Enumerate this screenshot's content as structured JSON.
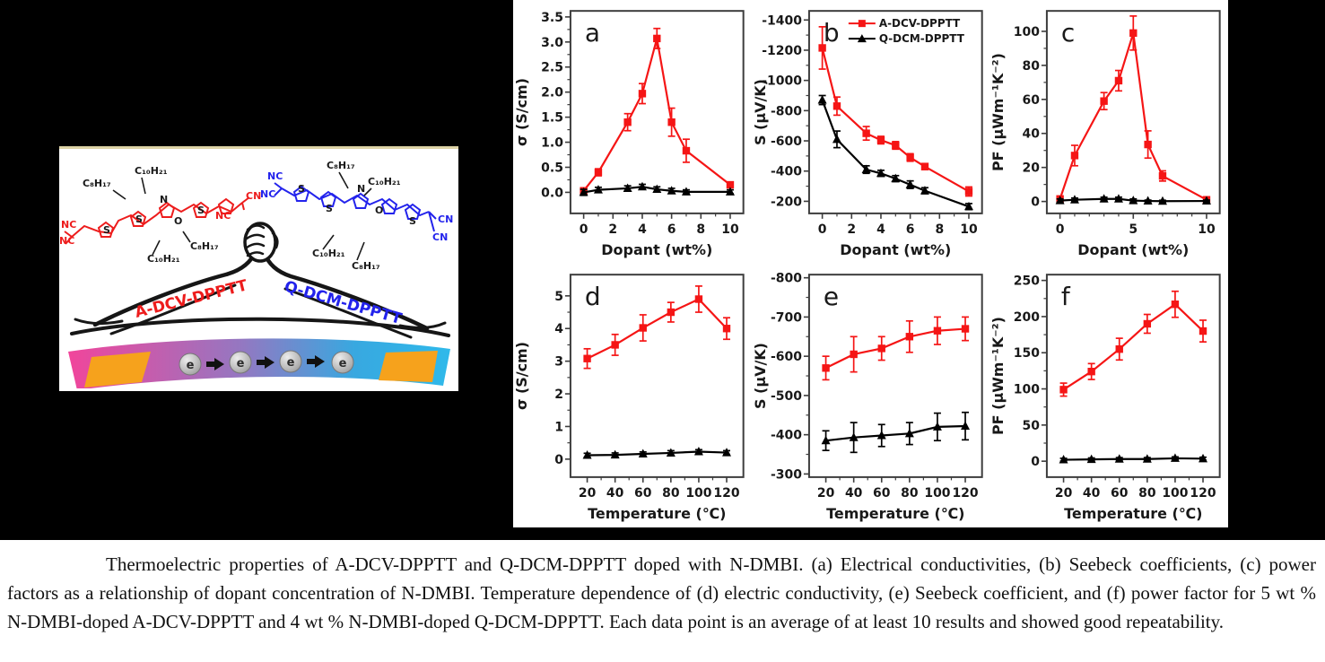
{
  "caption": {
    "text": "Thermoelectric properties of A-DCV-DPPTT and Q-DCM-DPPTT doped with N-DMBI. (a) Electrical conductivities, (b) Seebeck coefficients, (c) power factors as a relationship of dopant concentration of N-DMBI. Temperature dependence of (d) electric conductivity, (e) Seebeck coefficient, and (f) power factor for 5 wt % N-DMBI-doped A-DCV-DPPTT and 4 wt % N-DMBI-doped Q-DCM-DPPTT. Each data point is an average of at least 10 results and showed good repeatability."
  },
  "colors": {
    "series_red": "#f51515",
    "series_black": "#000000",
    "molecule_red": "#ed1c1c",
    "molecule_blue": "#2323ec",
    "electrode_orange": "#f6a21c",
    "film_pink": "#f1459b",
    "film_blue": "#2fb9ea",
    "figure_background": "#000000"
  },
  "illustration": {
    "left_molecule": {
      "name": "A-DCV-DPPTT",
      "alkyl": [
        "C₈H₁₇",
        "C₁₀H₂₁",
        "C₁₀H₂₁",
        "C₈H₁₇"
      ],
      "nitriles": [
        "NC",
        "NC",
        "NC",
        "CN"
      ],
      "atoms": [
        "S",
        "S",
        "N",
        "O",
        "S"
      ]
    },
    "right_molecule": {
      "name": "Q-DCM-DPPTT",
      "alkyl": [
        "C₈H₁₇",
        "C₁₀H₂₁",
        "C₁₀H₂₁",
        "C₈H₁₇"
      ],
      "nitriles": [
        "NC",
        "NC",
        "CN",
        "CN"
      ],
      "atoms": [
        "S",
        "S",
        "N",
        "O",
        "S"
      ]
    },
    "electron_symbol": "e"
  },
  "chart_data": [
    {
      "id": "a",
      "letter": "a",
      "type": "line",
      "xlabel": "Dopant (wt%)",
      "ylabel": "σ (S/cm)",
      "xlim": [
        -0.9,
        10.9
      ],
      "ylim": [
        -0.42,
        3.62
      ],
      "xticks": [
        0,
        2,
        4,
        6,
        8,
        10
      ],
      "xtick_labels": [
        "0",
        "2",
        "4",
        "6",
        "8",
        "10"
      ],
      "xminor": [
        1,
        3,
        5,
        7,
        9
      ],
      "yticks": [
        0,
        0.5,
        1,
        1.5,
        2,
        2.5,
        3,
        3.5
      ],
      "ytick_labels": [
        "0.0",
        "0.5",
        "1.0",
        "1.5",
        "2.0",
        "2.5",
        "3.0",
        "3.5"
      ],
      "x": [
        0,
        1,
        3,
        4,
        5,
        6,
        7,
        10
      ],
      "legend": false,
      "series": [
        {
          "name": "A-DCV-DPPTT",
          "color": "#f51515",
          "marker": "square",
          "y": [
            0.03,
            0.4,
            1.4,
            1.97,
            3.07,
            1.4,
            0.83,
            0.15
          ],
          "yerr": [
            0.06,
            0.07,
            0.17,
            0.2,
            0.2,
            0.28,
            0.23,
            0.05
          ]
        },
        {
          "name": "Q-DCM-DPPTT",
          "color": "#000000",
          "marker": "triangle",
          "y": [
            0.0,
            0.05,
            0.08,
            0.11,
            0.06,
            0.03,
            0.01,
            0.01
          ],
          "yerr": [
            0.06,
            0.05,
            0.05,
            0.05,
            0.05,
            0.05,
            0.04,
            0.04
          ]
        }
      ]
    },
    {
      "id": "b",
      "letter": "b",
      "type": "line",
      "xlabel": "Dopant (wt%)",
      "ylabel": "S (μV/K)",
      "xlim": [
        -0.9,
        10.9
      ],
      "ylim": [
        -120,
        -1460
      ],
      "xticks": [
        0,
        2,
        4,
        6,
        8,
        10
      ],
      "xtick_labels": [
        "0",
        "2",
        "4",
        "6",
        "8",
        "10"
      ],
      "xminor": [
        1,
        3,
        5,
        7,
        9
      ],
      "yticks": [
        -1400,
        -1200,
        -1000,
        -800,
        -600,
        -400,
        -200
      ],
      "ytick_labels": [
        "-1400",
        "-1200",
        "-1000",
        "-800",
        "-600",
        "-400",
        "-200"
      ],
      "x": [
        0,
        1,
        3,
        4,
        5,
        6,
        7,
        10
      ],
      "legend": true,
      "series": [
        {
          "name": "A-DCV-DPPTT",
          "color": "#f51515",
          "marker": "square",
          "y": [
            -1215,
            -830,
            -650,
            -605,
            -570,
            -490,
            -430,
            -265
          ],
          "yerr": [
            140,
            60,
            45,
            25,
            25,
            25,
            20,
            30
          ]
        },
        {
          "name": "Q-DCM-DPPTT",
          "color": "#000000",
          "marker": "triangle",
          "y": [
            -870,
            -610,
            -410,
            -385,
            -350,
            -310,
            -270,
            -165
          ],
          "yerr": [
            30,
            55,
            25,
            20,
            20,
            25,
            20,
            20
          ]
        }
      ]
    },
    {
      "id": "c",
      "letter": "c",
      "type": "line",
      "xlabel": "Dopant (wt%)",
      "ylabel": "PF (μWm⁻¹K⁻²)",
      "xlim": [
        -0.9,
        10.9
      ],
      "ylim": [
        -7,
        112
      ],
      "xticks": [
        0,
        5,
        10
      ],
      "xtick_labels": [
        "0",
        "5",
        "10"
      ],
      "xminor": [
        1,
        2,
        3,
        4,
        6,
        7,
        8,
        9
      ],
      "yticks": [
        0,
        20,
        40,
        60,
        80,
        100
      ],
      "ytick_labels": [
        "0",
        "20",
        "40",
        "60",
        "80",
        "100"
      ],
      "x": [
        0,
        1,
        3,
        4,
        5,
        6,
        7,
        10
      ],
      "legend": false,
      "series": [
        {
          "name": "A-DCV-DPPTT",
          "color": "#f51515",
          "marker": "square",
          "y": [
            1.5,
            27,
            59,
            71,
            99,
            33.5,
            15,
            1
          ],
          "yerr": [
            1.5,
            6,
            5,
            6,
            10,
            8,
            3,
            1
          ]
        },
        {
          "name": "Q-DCM-DPPTT",
          "color": "#000000",
          "marker": "triangle",
          "y": [
            0.5,
            1,
            1.5,
            1.5,
            0.5,
            0.3,
            0.2,
            0.3
          ],
          "yerr": [
            1,
            1,
            1,
            1,
            1,
            0.5,
            0.5,
            0.5
          ]
        }
      ]
    },
    {
      "id": "d",
      "letter": "d",
      "type": "line",
      "xlabel": "Temperature (℃)",
      "ylabel": "σ (S/cm)",
      "xlim": [
        8,
        132
      ],
      "ylim": [
        -0.55,
        5.65
      ],
      "xticks": [
        20,
        40,
        60,
        80,
        100,
        120
      ],
      "xtick_labels": [
        "20",
        "40",
        "60",
        "80",
        "100",
        "120"
      ],
      "xminor": [
        30,
        50,
        70,
        90,
        110
      ],
      "yticks": [
        0,
        1,
        2,
        3,
        4,
        5
      ],
      "ytick_labels": [
        "0",
        "1",
        "2",
        "3",
        "4",
        "5"
      ],
      "x": [
        20,
        40,
        60,
        80,
        100,
        120
      ],
      "legend": false,
      "series": [
        {
          "name": "A-DCV-DPPTT",
          "color": "#f51515",
          "marker": "square",
          "y": [
            3.08,
            3.5,
            4.02,
            4.5,
            4.9,
            4.0
          ],
          "yerr": [
            0.3,
            0.32,
            0.4,
            0.3,
            0.4,
            0.33
          ]
        },
        {
          "name": "Q-DCM-DPPTT",
          "color": "#000000",
          "marker": "triangle",
          "y": [
            0.12,
            0.13,
            0.16,
            0.19,
            0.23,
            0.2
          ],
          "yerr": [
            0.06,
            0.06,
            0.06,
            0.07,
            0.06,
            0.06
          ]
        }
      ]
    },
    {
      "id": "e",
      "letter": "e",
      "type": "line",
      "xlabel": "Temperature (℃)",
      "ylabel": "S (μV/K)",
      "xlim": [
        8,
        132
      ],
      "ylim": [
        -292,
        -808
      ],
      "xticks": [
        20,
        40,
        60,
        80,
        100,
        120
      ],
      "xtick_labels": [
        "20",
        "40",
        "60",
        "80",
        "100",
        "120"
      ],
      "xminor": [
        30,
        50,
        70,
        90,
        110
      ],
      "yticks": [
        -800,
        -700,
        -600,
        -500,
        -400,
        -300
      ],
      "ytick_labels": [
        "-800",
        "-700",
        "-600",
        "-500",
        "-400",
        "-300"
      ],
      "x": [
        20,
        40,
        60,
        80,
        100,
        120
      ],
      "legend": false,
      "series": [
        {
          "name": "A-DCV-DPPTT",
          "color": "#f51515",
          "marker": "square",
          "y": [
            -570,
            -605,
            -620,
            -650,
            -665,
            -670
          ],
          "yerr": [
            30,
            45,
            30,
            40,
            35,
            30
          ]
        },
        {
          "name": "Q-DCM-DPPTT",
          "color": "#000000",
          "marker": "triangle",
          "y": [
            -385,
            -393,
            -398,
            -403,
            -420,
            -422
          ],
          "yerr": [
            25,
            38,
            28,
            28,
            35,
            35
          ]
        }
      ]
    },
    {
      "id": "f",
      "letter": "f",
      "type": "line",
      "xlabel": "Temperature (℃)",
      "ylabel": "PF (μWm⁻¹K⁻²)",
      "xlim": [
        8,
        132
      ],
      "ylim": [
        -22,
        258
      ],
      "xticks": [
        20,
        40,
        60,
        80,
        100,
        120
      ],
      "xtick_labels": [
        "20",
        "40",
        "60",
        "80",
        "100",
        "120"
      ],
      "xminor": [
        30,
        50,
        70,
        90,
        110
      ],
      "yticks": [
        0,
        50,
        100,
        150,
        200,
        250
      ],
      "ytick_labels": [
        "0",
        "50",
        "100",
        "150",
        "200",
        "250"
      ],
      "x": [
        20,
        40,
        60,
        80,
        100,
        120
      ],
      "legend": false,
      "series": [
        {
          "name": "A-DCV-DPPTT",
          "color": "#f51515",
          "marker": "square",
          "y": [
            99,
            124,
            155,
            190,
            217,
            180
          ],
          "yerr": [
            9,
            11,
            15,
            13,
            18,
            15
          ]
        },
        {
          "name": "Q-DCM-DPPTT",
          "color": "#000000",
          "marker": "triangle",
          "y": [
            2,
            2.5,
            3,
            3,
            4,
            3.5
          ],
          "yerr": [
            2,
            2,
            2,
            2,
            2,
            2
          ]
        }
      ]
    }
  ]
}
